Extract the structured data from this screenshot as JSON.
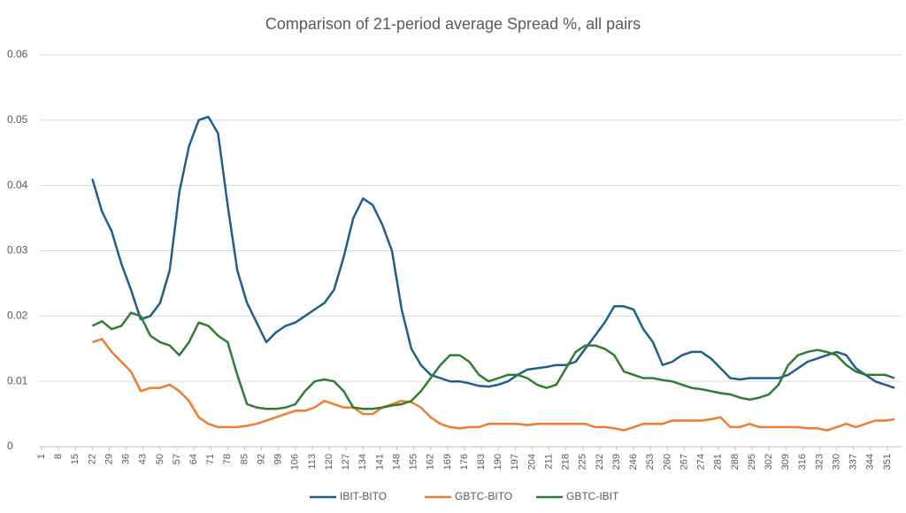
{
  "chart_data": {
    "type": "line",
    "title": "Comparison of 21-period average Spread %, all pairs",
    "x": [
      22,
      26,
      30,
      34,
      38,
      42,
      46,
      50,
      54,
      58,
      62,
      66,
      70,
      74,
      78,
      82,
      86,
      90,
      94,
      98,
      102,
      106,
      110,
      114,
      118,
      122,
      126,
      130,
      134,
      138,
      142,
      146,
      150,
      154,
      158,
      162,
      166,
      170,
      174,
      178,
      182,
      186,
      190,
      194,
      198,
      202,
      206,
      210,
      214,
      218,
      222,
      226,
      230,
      234,
      238,
      242,
      246,
      250,
      254,
      258,
      262,
      266,
      270,
      274,
      278,
      282,
      286,
      290,
      294,
      298,
      302,
      306,
      310,
      314,
      318,
      322,
      326,
      330,
      334,
      338,
      342,
      346,
      350,
      354
    ],
    "series": [
      {
        "name": "IBIT-BITO",
        "color": "#1f5f8b",
        "values": [
          0.041,
          0.036,
          0.033,
          0.028,
          0.024,
          0.0195,
          0.02,
          0.022,
          0.027,
          0.039,
          0.046,
          0.05,
          0.0505,
          0.048,
          0.037,
          0.027,
          0.022,
          0.019,
          0.016,
          0.0175,
          0.0185,
          0.019,
          0.02,
          0.021,
          0.022,
          0.024,
          0.029,
          0.035,
          0.038,
          0.037,
          0.034,
          0.03,
          0.021,
          0.015,
          0.0125,
          0.011,
          0.0105,
          0.01,
          0.01,
          0.0097,
          0.0093,
          0.0092,
          0.0095,
          0.01,
          0.011,
          0.0118,
          0.012,
          0.0122,
          0.0125,
          0.0125,
          0.013,
          0.015,
          0.017,
          0.019,
          0.0215,
          0.0215,
          0.021,
          0.018,
          0.016,
          0.0125,
          0.013,
          0.014,
          0.0145,
          0.0145,
          0.0135,
          0.012,
          0.0105,
          0.0103,
          0.0105,
          0.0105,
          0.0105,
          0.0105,
          0.011,
          0.012,
          0.013,
          0.0135,
          0.014,
          0.0145,
          0.014,
          0.012,
          0.011,
          0.01,
          0.0095,
          0.009
        ]
      },
      {
        "name": "GBTC-BITO",
        "color": "#ed7d31",
        "values": [
          0.016,
          0.0165,
          0.0145,
          0.013,
          0.0115,
          0.0085,
          0.009,
          0.009,
          0.0095,
          0.0085,
          0.007,
          0.0045,
          0.0035,
          0.003,
          0.003,
          0.003,
          0.0032,
          0.0035,
          0.004,
          0.0045,
          0.005,
          0.0055,
          0.0055,
          0.006,
          0.007,
          0.0065,
          0.006,
          0.006,
          0.005,
          0.005,
          0.006,
          0.0065,
          0.007,
          0.0068,
          0.006,
          0.0045,
          0.0035,
          0.003,
          0.0028,
          0.003,
          0.003,
          0.0035,
          0.0035,
          0.0035,
          0.0035,
          0.0033,
          0.0035,
          0.0035,
          0.0035,
          0.0035,
          0.0035,
          0.0035,
          0.003,
          0.003,
          0.0028,
          0.0025,
          0.003,
          0.0035,
          0.0035,
          0.0035,
          0.004,
          0.004,
          0.004,
          0.004,
          0.0042,
          0.0045,
          0.003,
          0.003,
          0.0035,
          0.003,
          0.003,
          0.003,
          0.003,
          0.003,
          0.0028,
          0.0028,
          0.0025,
          0.003,
          0.0035,
          0.003,
          0.0035,
          0.004,
          0.004,
          0.0042
        ]
      },
      {
        "name": "GBTC-IBIT",
        "color": "#2e7d32",
        "values": [
          0.0185,
          0.0192,
          0.018,
          0.0185,
          0.0205,
          0.02,
          0.017,
          0.016,
          0.0155,
          0.014,
          0.016,
          0.019,
          0.0185,
          0.017,
          0.016,
          0.011,
          0.0065,
          0.006,
          0.0058,
          0.0058,
          0.006,
          0.0065,
          0.0085,
          0.01,
          0.0103,
          0.01,
          0.0085,
          0.006,
          0.0058,
          0.0058,
          0.006,
          0.0063,
          0.0065,
          0.007,
          0.0085,
          0.0105,
          0.0125,
          0.014,
          0.014,
          0.013,
          0.011,
          0.01,
          0.0105,
          0.011,
          0.011,
          0.0105,
          0.0095,
          0.009,
          0.0095,
          0.012,
          0.0145,
          0.0155,
          0.0155,
          0.015,
          0.014,
          0.0115,
          0.011,
          0.0105,
          0.0105,
          0.0102,
          0.01,
          0.0095,
          0.009,
          0.0088,
          0.0085,
          0.0082,
          0.008,
          0.0075,
          0.0072,
          0.0075,
          0.008,
          0.0095,
          0.0125,
          0.014,
          0.0145,
          0.0148,
          0.0145,
          0.014,
          0.0125,
          0.0115,
          0.011,
          0.011,
          0.011,
          0.0105
        ]
      }
    ],
    "xlim": [
      0,
      357
    ],
    "xticks": [
      1,
      8,
      15,
      22,
      29,
      36,
      43,
      50,
      57,
      64,
      71,
      78,
      85,
      92,
      99,
      106,
      113,
      120,
      127,
      134,
      141,
      148,
      155,
      162,
      169,
      176,
      183,
      190,
      197,
      204,
      211,
      218,
      225,
      232,
      239,
      246,
      253,
      260,
      267,
      274,
      281,
      288,
      295,
      302,
      309,
      316,
      323,
      330,
      337,
      344,
      351
    ],
    "ylim": [
      0,
      0.06
    ],
    "yticks": [
      0,
      0.01,
      0.02,
      0.03,
      0.04,
      0.05,
      0.06
    ],
    "grid": true,
    "legend": "bottom"
  }
}
